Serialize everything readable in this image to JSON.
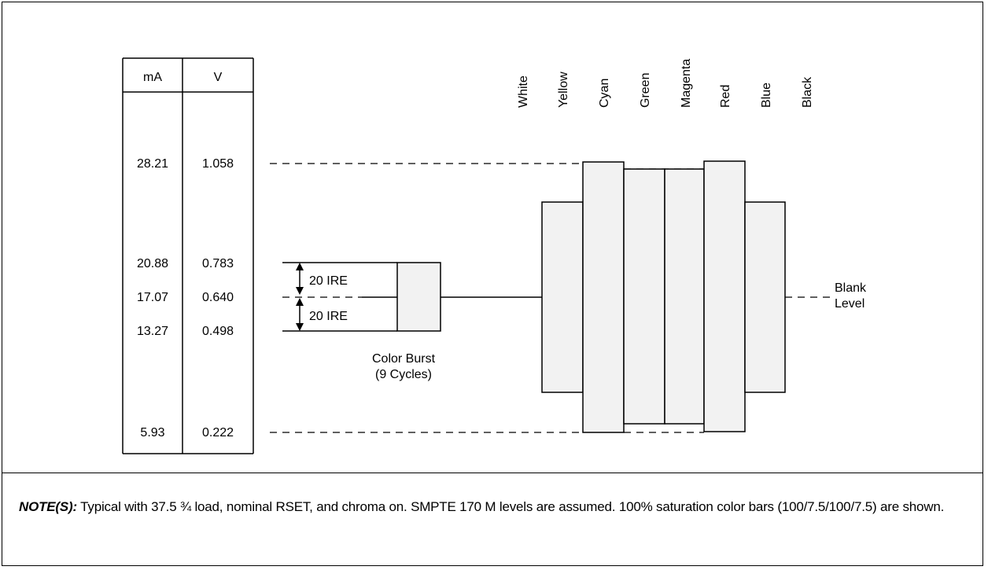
{
  "table": {
    "headers": [
      "mA",
      "V"
    ],
    "rows": [
      {
        "ma": "28.21",
        "v": "1.058"
      },
      {
        "ma": "20.88",
        "v": "0.783"
      },
      {
        "ma": "17.07",
        "v": "0.640"
      },
      {
        "ma": "13.27",
        "v": "0.498"
      },
      {
        "ma": "5.93",
        "v": "0.222"
      }
    ]
  },
  "bars": {
    "labels": [
      "White",
      "Yellow",
      "Cyan",
      "Green",
      "Magenta",
      "Red",
      "Blue",
      "Black"
    ]
  },
  "annotations": {
    "ire_upper": "20 IRE",
    "ire_lower": "20 IRE",
    "burst_line1": "Color Burst",
    "burst_line2": "(9 Cycles)",
    "blank_line1": "Blank",
    "blank_line2": "Level"
  },
  "note": {
    "label": "NOTE(S):",
    "text": " Typical with 37.5 ¾ load, nominal RSET, and chroma on. SMPTE 170 M levels are assumed. 100% saturation color bars (100/7.5/100/7.5) are shown."
  },
  "colors": {
    "bar_fill": "#f2f2f2",
    "line": "#000000"
  }
}
